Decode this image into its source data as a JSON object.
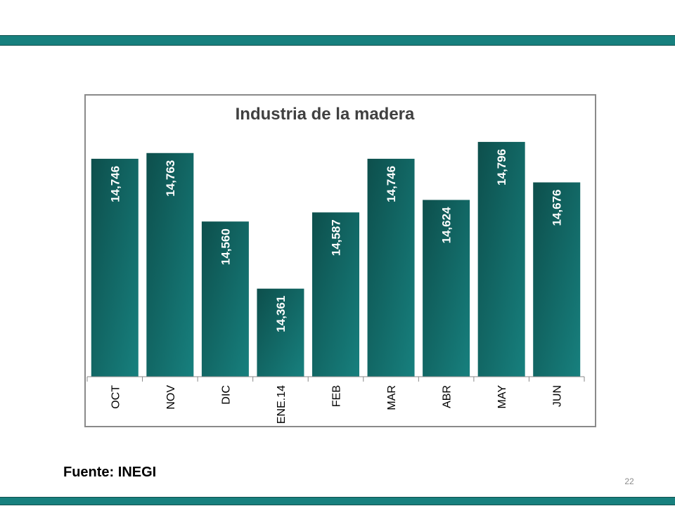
{
  "chart_data": {
    "type": "bar",
    "title": "Industria de la madera",
    "categories": [
      "OCT",
      "NOV",
      "DIC",
      "ENE.14",
      "FEB",
      "MAR",
      "ABR",
      "MAY",
      "JUN"
    ],
    "values": [
      14746,
      14763,
      14560,
      14361,
      14587,
      14746,
      14624,
      14796,
      14676
    ],
    "data_labels": [
      "14,746",
      "14,763",
      "14,560",
      "14,361",
      "14,587",
      "14,746",
      "14,624",
      "14,796",
      "14,676"
    ],
    "xlabel": "",
    "ylabel": "",
    "ylim": [
      14100,
      14850
    ],
    "grid": false,
    "legend": "none",
    "bar_color": "#17807e",
    "bar_color_dark": "#0d4f4c"
  },
  "source_note": "Fuente: INEGI",
  "page_number": "22",
  "colors": {
    "band": "#17807e",
    "frame": "#8a8a8a"
  }
}
